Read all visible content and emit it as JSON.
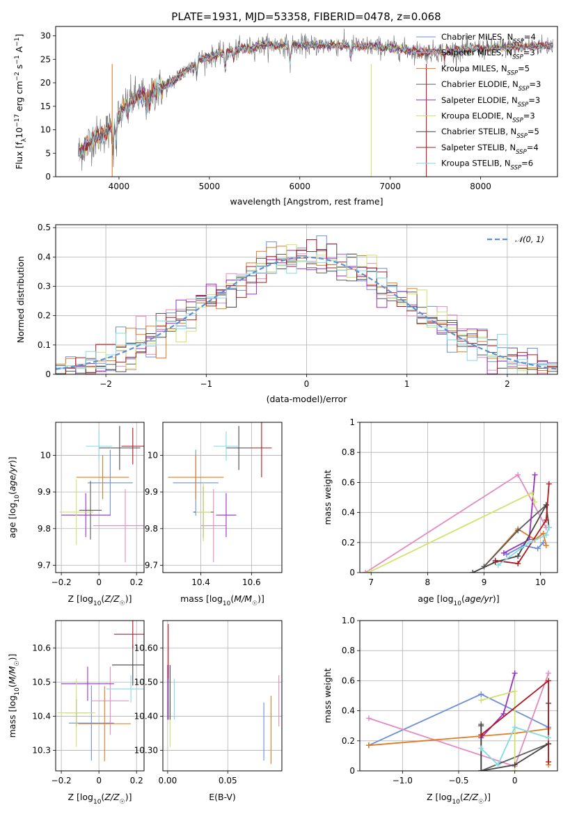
{
  "figure": {
    "title": "PLATE=1931, MJD=53358, FIBERID=0478, z=0.068"
  },
  "colors": {
    "cm": "#6a8fd8",
    "sm": "#e589be",
    "km": "#e07a1f",
    "ce": "#5a5a5a",
    "se": "#9b2ec2",
    "ke": "#cfe26a",
    "cs": "#444444",
    "ss": "#b0171f",
    "ks": "#82dbe4",
    "grid": "#b0b0b0",
    "normal": "#5b8fd6"
  },
  "legend": [
    {
      "key": "cm",
      "label": "Chabrier MILES, N",
      "sub": "SSP",
      "suffix": "=4"
    },
    {
      "key": "sm",
      "label": "Salpeter MILES, N",
      "sub": "SSP",
      "suffix": "=3"
    },
    {
      "key": "km",
      "label": "Kroupa MILES, N",
      "sub": "SSP",
      "suffix": "=5"
    },
    {
      "key": "ce",
      "label": "Chabrier ELODIE, N",
      "sub": "SSP",
      "suffix": "=3"
    },
    {
      "key": "se",
      "label": "Salpeter ELODIE, N",
      "sub": "SSP",
      "suffix": "=3"
    },
    {
      "key": "ke",
      "label": "Kroupa ELODIE, N",
      "sub": "SSP",
      "suffix": "=3"
    },
    {
      "key": "cs",
      "label": "Chabrier STELIB, N",
      "sub": "SSP",
      "suffix": "=5"
    },
    {
      "key": "ss",
      "label": "Salpeter STELIB, N",
      "sub": "SSP",
      "suffix": "=4"
    },
    {
      "key": "ks",
      "label": "Kroupa STELIB, N",
      "sub": "SSP",
      "suffix": "=6"
    }
  ],
  "chart_data": [
    {
      "id": "spectrum",
      "type": "line",
      "xlabel": "wavelength [Angstrom, rest frame]",
      "ylabel": "Flux [f_λ10^-17 erg cm^-2 s^-1 A^-1]",
      "xlim": [
        3300,
        8850
      ],
      "ylim": [
        0,
        32
      ],
      "xticks": [
        4000,
        5000,
        6000,
        7000,
        8000
      ],
      "yticks": [
        0,
        5,
        10,
        15,
        20,
        25,
        30
      ],
      "grid": false,
      "legend_position": "upper-right",
      "continuum": [
        [
          3550,
          5
        ],
        [
          3700,
          8
        ],
        [
          3900,
          10
        ],
        [
          4000,
          13
        ],
        [
          4100,
          16
        ],
        [
          4200,
          17
        ],
        [
          4300,
          17.5
        ],
        [
          4500,
          19
        ],
        [
          4700,
          22
        ],
        [
          4900,
          25
        ],
        [
          5100,
          26
        ],
        [
          5300,
          27
        ],
        [
          5600,
          28
        ],
        [
          6000,
          28
        ],
        [
          6400,
          28
        ],
        [
          7000,
          27.5
        ],
        [
          7400,
          26.5
        ],
        [
          7800,
          27
        ],
        [
          8200,
          27.5
        ],
        [
          8800,
          28
        ]
      ]
    },
    {
      "id": "residual-histogram",
      "type": "bar",
      "xlabel": "(data-model)/error",
      "ylabel": "Normed distribution",
      "xlim": [
        -2.5,
        2.5
      ],
      "ylim": [
        0,
        0.51
      ],
      "xticks": [
        -2,
        -1,
        0,
        1,
        2
      ],
      "yticks": [
        0.0,
        0.1,
        0.2,
        0.3,
        0.4,
        0.5
      ],
      "grid": true,
      "legend_position": "upper-right",
      "series": [
        {
          "name": "𝒩(0, 1)",
          "key": "normal"
        }
      ]
    },
    {
      "id": "age-vs-Z",
      "type": "scatter",
      "xlabel": "Z [log10(Z/Z☉)]",
      "ylabel": "age  [log10(age/yr)]",
      "xlim": [
        -0.23,
        0.24
      ],
      "ylim": [
        9.68,
        10.09
      ],
      "xticks": [
        -0.2,
        0.0,
        0.2
      ],
      "yticks": [
        9.7,
        9.8,
        9.9,
        10.0
      ],
      "grid": true,
      "points": [
        {
          "key": "cm",
          "x": 0.06,
          "y": 9.925,
          "xerr": 0.12,
          "yerr": 0.09
        },
        {
          "key": "sm",
          "x": 0.14,
          "y": 9.808,
          "xerr": 0.17,
          "yerr": 0.1
        },
        {
          "key": "km",
          "x": 0.02,
          "y": 9.94,
          "xerr": 0.14,
          "yerr": 0.06
        },
        {
          "key": "ce",
          "x": -0.045,
          "y": 9.85,
          "xerr": 0.06,
          "yerr": 0.08
        },
        {
          "key": "se",
          "x": -0.07,
          "y": 9.837,
          "xerr": 0.13,
          "yerr": 0.06
        },
        {
          "key": "ke",
          "x": -0.12,
          "y": 9.845,
          "xerr": 0.09,
          "yerr": 0.09
        },
        {
          "key": "cs",
          "x": 0.11,
          "y": 10.02,
          "xerr": 0.11,
          "yerr": 0.06
        },
        {
          "key": "ss",
          "x": 0.18,
          "y": 10.025,
          "xerr": 0.06,
          "yerr": 0.05
        },
        {
          "key": "ks",
          "x": 0.0,
          "y": 10.025,
          "xerr": 0.07,
          "yerr": 0.04
        }
      ]
    },
    {
      "id": "age-vs-mass",
      "type": "scatter",
      "xlabel": "mass [log10(M/M☉)]",
      "ylabel": "",
      "xlim": [
        10.25,
        10.72
      ],
      "ylim": [
        9.68,
        10.09
      ],
      "xticks": [
        10.4,
        10.6
      ],
      "yticks": [
        9.7,
        9.8,
        9.9,
        10.0
      ],
      "grid": true,
      "points": [
        {
          "key": "cm",
          "x": 10.38,
          "y": 9.925,
          "xerr": 0.09,
          "yerr": 0.09
        },
        {
          "key": "sm",
          "x": 10.45,
          "y": 9.808,
          "xerr": 0.05,
          "yerr": 0.1
        },
        {
          "key": "km",
          "x": 10.38,
          "y": 9.94,
          "xerr": 0.11,
          "yerr": 0.06
        },
        {
          "key": "ce",
          "x": 10.41,
          "y": 9.845,
          "xerr": 0.04,
          "yerr": 0.07
        },
        {
          "key": "se",
          "x": 10.5,
          "y": 9.837,
          "xerr": 0.04,
          "yerr": 0.06
        },
        {
          "key": "ke",
          "x": 10.41,
          "y": 9.845,
          "xerr": 0.03,
          "yerr": 0.08
        },
        {
          "key": "cs",
          "x": 10.55,
          "y": 10.02,
          "xerr": 0.05,
          "yerr": 0.06
        },
        {
          "key": "ss",
          "x": 10.64,
          "y": 10.02,
          "xerr": 0.04,
          "yerr": 0.08
        },
        {
          "key": "ks",
          "x": 10.5,
          "y": 10.025,
          "xerr": 0.05,
          "yerr": 0.04
        }
      ]
    },
    {
      "id": "mass-weight-vs-age",
      "type": "line",
      "xlabel": "age  [log10(age/yr)]",
      "ylabel": "mass weight",
      "xlim": [
        6.8,
        10.3
      ],
      "ylim": [
        0,
        1
      ],
      "xticks": [
        7,
        8,
        9,
        10
      ],
      "yticks": [
        0.0,
        0.2,
        0.4,
        0.6,
        0.8,
        1.0
      ],
      "grid": true,
      "series": [
        {
          "key": "cm",
          "points": [
            [
              9.4,
              0.12
            ],
            [
              9.7,
              0.18
            ],
            [
              9.95,
              0.16
            ],
            [
              10.05,
              0.2
            ]
          ]
        },
        {
          "key": "sm",
          "points": [
            [
              6.9,
              0.0
            ],
            [
              9.6,
              0.65
            ],
            [
              10.1,
              0.3
            ]
          ]
        },
        {
          "key": "km",
          "points": [
            [
              9.0,
              0.04
            ],
            [
              9.6,
              0.29
            ],
            [
              9.9,
              0.22
            ],
            [
              10.05,
              0.26
            ],
            [
              10.1,
              0.18
            ]
          ]
        },
        {
          "key": "ce",
          "points": [
            [
              9.0,
              0.04
            ],
            [
              9.6,
              0.28
            ],
            [
              10.1,
              0.45
            ]
          ]
        },
        {
          "key": "se",
          "points": [
            [
              9.35,
              0.13
            ],
            [
              9.8,
              0.22
            ],
            [
              9.9,
              0.65
            ]
          ]
        },
        {
          "key": "ke",
          "points": [
            [
              6.95,
              0.0
            ],
            [
              9.85,
              0.53
            ],
            [
              9.9,
              0.47
            ]
          ]
        },
        {
          "key": "cs",
          "points": [
            [
              8.8,
              0.0
            ],
            [
              9.2,
              0.07
            ],
            [
              9.6,
              0.11
            ],
            [
              10.1,
              0.45
            ],
            [
              10.15,
              0.3
            ]
          ]
        },
        {
          "key": "ss",
          "points": [
            [
              9.2,
              0.08
            ],
            [
              9.6,
              0.06
            ],
            [
              10.1,
              0.35
            ],
            [
              10.15,
              0.59
            ]
          ]
        },
        {
          "key": "ks",
          "points": [
            [
              9.25,
              0.05
            ],
            [
              9.8,
              0.2
            ],
            [
              10.1,
              0.25
            ],
            [
              10.15,
              0.3
            ]
          ]
        }
      ]
    },
    {
      "id": "mass-vs-Z",
      "type": "scatter",
      "xlabel": "Z [log10(Z/Z☉)]",
      "ylabel": "mass [log10(M/M☉)]",
      "xlim": [
        -0.23,
        0.24
      ],
      "ylim": [
        10.24,
        10.68
      ],
      "xticks": [
        -0.2,
        0.0,
        0.2
      ],
      "yticks": [
        10.3,
        10.4,
        10.5,
        10.6
      ],
      "grid": true,
      "points": [
        {
          "key": "cm",
          "x": -0.04,
          "y": 10.38,
          "xerr": 0.12,
          "yerr": 0.11
        },
        {
          "key": "sm",
          "x": 0.06,
          "y": 10.445,
          "xerr": 0.1,
          "yerr": 0.1
        },
        {
          "key": "km",
          "x": 0.03,
          "y": 10.378,
          "xerr": 0.14,
          "yerr": 0.11
        },
        {
          "key": "ce",
          "x": -0.12,
          "y": 10.41,
          "xerr": 0.06,
          "yerr": 0.04
        },
        {
          "key": "se",
          "x": -0.06,
          "y": 10.495,
          "xerr": 0.14,
          "yerr": 0.05
        },
        {
          "key": "ke",
          "x": -0.12,
          "y": 10.41,
          "xerr": 0.1,
          "yerr": 0.1
        },
        {
          "key": "cs",
          "x": 0.18,
          "y": 10.55,
          "xerr": 0.11,
          "yerr": 0.06
        },
        {
          "key": "ss",
          "x": 0.18,
          "y": 10.64,
          "xerr": 0.1,
          "yerr": 0.04
        },
        {
          "key": "ks",
          "x": 0.17,
          "y": 10.48,
          "xerr": 0.13,
          "yerr": 0.04
        }
      ]
    },
    {
      "id": "mass-vs-EBV",
      "type": "scatter",
      "xlabel": "E(B-V)",
      "ylabel": "",
      "xlim": [
        -0.004,
        0.095
      ],
      "ylim": [
        10.24,
        10.68
      ],
      "xticks": [
        0.0,
        0.05
      ],
      "yticks": [
        10.3,
        10.4,
        10.5,
        10.6
      ],
      "grid": true,
      "points": [
        {
          "key": "cm",
          "x": 0.08,
          "y": 10.355,
          "xerr": 0,
          "yerr": 0.085
        },
        {
          "key": "sm",
          "x": 0.0925,
          "y": 10.445,
          "xerr": 0,
          "yerr": 0.075
        },
        {
          "key": "km",
          "x": 0.086,
          "y": 10.36,
          "xerr": 0,
          "yerr": 0.1
        },
        {
          "key": "ce",
          "x": 0.0005,
          "y": 10.47,
          "xerr": 0,
          "yerr": 0.08
        },
        {
          "key": "se",
          "x": 0.0,
          "y": 10.47,
          "xerr": 0,
          "yerr": 0.08
        },
        {
          "key": "ke",
          "x": 0.002,
          "y": 10.37,
          "xerr": 0,
          "yerr": 0.06
        },
        {
          "key": "cs",
          "x": 0.002,
          "y": 10.47,
          "xerr": 0,
          "yerr": 0.08
        },
        {
          "key": "ss",
          "x": 0.0005,
          "y": 10.59,
          "xerr": 0,
          "yerr": 0.08
        },
        {
          "key": "ks",
          "x": 0.0055,
          "y": 10.45,
          "xerr": 0,
          "yerr": 0.06
        }
      ]
    },
    {
      "id": "mass-weight-vs-Z",
      "type": "line",
      "xlabel": "Z [log10(Z/Z☉)]",
      "ylabel": "mass weight",
      "xlim": [
        -1.38,
        0.38
      ],
      "ylim": [
        0,
        1
      ],
      "xticks": [
        -1.0,
        -0.5,
        0.0
      ],
      "yticks": [
        0.0,
        0.2,
        0.4,
        0.6,
        0.8,
        1.0
      ],
      "grid": true,
      "series": [
        {
          "key": "cm",
          "points": [
            [
              -1.3,
              0.17
            ],
            [
              -0.3,
              0.51
            ],
            [
              0.3,
              0.29
            ]
          ]
        },
        {
          "key": "sm",
          "points": [
            [
              -1.3,
              0.35
            ],
            [
              0.0,
              0.03
            ],
            [
              0.3,
              0.65
            ]
          ]
        },
        {
          "key": "km",
          "points": [
            [
              -1.3,
              0.17
            ],
            [
              0.0,
              0.25
            ],
            [
              0.3,
              0.28
            ],
            [
              0.3,
              0.04
            ]
          ]
        },
        {
          "key": "ce",
          "points": [
            [
              -0.3,
              0.31
            ],
            [
              -0.3,
              0.0
            ],
            [
              0.3,
              0.18
            ]
          ]
        },
        {
          "key": "se",
          "points": [
            [
              -0.3,
              0.22
            ],
            [
              -0.1,
              0.38
            ],
            [
              0.0,
              0.65
            ]
          ]
        },
        {
          "key": "ke",
          "points": [
            [
              -0.3,
              0.47
            ],
            [
              0.0,
              0.53
            ],
            [
              0.0,
              0.0
            ]
          ]
        },
        {
          "key": "cs",
          "points": [
            [
              -0.3,
              0.3
            ],
            [
              -0.3,
              0.0
            ],
            [
              0.0,
              0.04
            ],
            [
              0.3,
              0.18
            ],
            [
              0.3,
              0.45
            ]
          ]
        },
        {
          "key": "ss",
          "points": [
            [
              -0.3,
              0.24
            ],
            [
              0.3,
              0.6
            ],
            [
              0.3,
              0.06
            ]
          ]
        },
        {
          "key": "ks",
          "points": [
            [
              -0.3,
              0.15
            ],
            [
              -0.15,
              0.04
            ],
            [
              0.0,
              0.29
            ],
            [
              0.3,
              0.22
            ]
          ]
        }
      ]
    }
  ]
}
